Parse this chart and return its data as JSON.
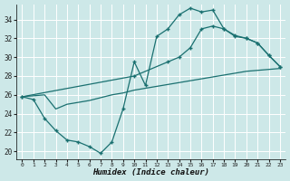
{
  "background_color": "#cde8e8",
  "grid_color": "#b8d8d8",
  "line_color": "#1a7070",
  "xlabel": "Humidex (Indice chaleur)",
  "xlim": [
    -0.5,
    23.5
  ],
  "ylim": [
    19.2,
    35.6
  ],
  "yticks": [
    20,
    22,
    24,
    26,
    28,
    30,
    32,
    34
  ],
  "xticks": [
    0,
    1,
    2,
    3,
    4,
    5,
    6,
    7,
    8,
    9,
    10,
    11,
    12,
    13,
    14,
    15,
    16,
    17,
    18,
    19,
    20,
    21,
    22,
    23
  ],
  "line1_x": [
    0,
    1,
    2,
    3,
    4,
    5,
    6,
    7,
    8,
    9,
    10,
    11,
    12,
    13,
    14,
    15,
    16,
    17,
    18,
    19,
    20,
    21,
    22,
    23
  ],
  "line1_y": [
    25.8,
    25.5,
    23.5,
    22.2,
    21.2,
    21.0,
    20.5,
    19.8,
    21.0,
    24.5,
    29.5,
    27.0,
    32.2,
    33.0,
    34.5,
    35.2,
    34.8,
    35.0,
    33.0,
    32.3,
    32.0,
    31.5,
    30.2,
    29.0
  ],
  "line2_x": [
    0,
    10,
    13,
    14,
    15,
    16,
    17,
    18,
    19,
    20,
    21,
    22,
    23
  ],
  "line2_y": [
    25.8,
    28.0,
    29.5,
    30.0,
    31.0,
    33.0,
    33.3,
    33.0,
    32.2,
    32.0,
    31.5,
    30.2,
    29.0
  ],
  "line3_x": [
    0,
    1,
    2,
    3,
    4,
    5,
    6,
    7,
    8,
    9,
    10,
    11,
    12,
    13,
    14,
    15,
    16,
    17,
    18,
    19,
    20,
    21,
    22,
    23
  ],
  "line3_y": [
    25.8,
    25.9,
    26.0,
    24.5,
    25.0,
    25.2,
    25.4,
    25.7,
    26.0,
    26.2,
    26.5,
    26.7,
    26.9,
    27.1,
    27.3,
    27.5,
    27.7,
    27.9,
    28.1,
    28.3,
    28.5,
    28.6,
    28.7,
    28.8
  ]
}
